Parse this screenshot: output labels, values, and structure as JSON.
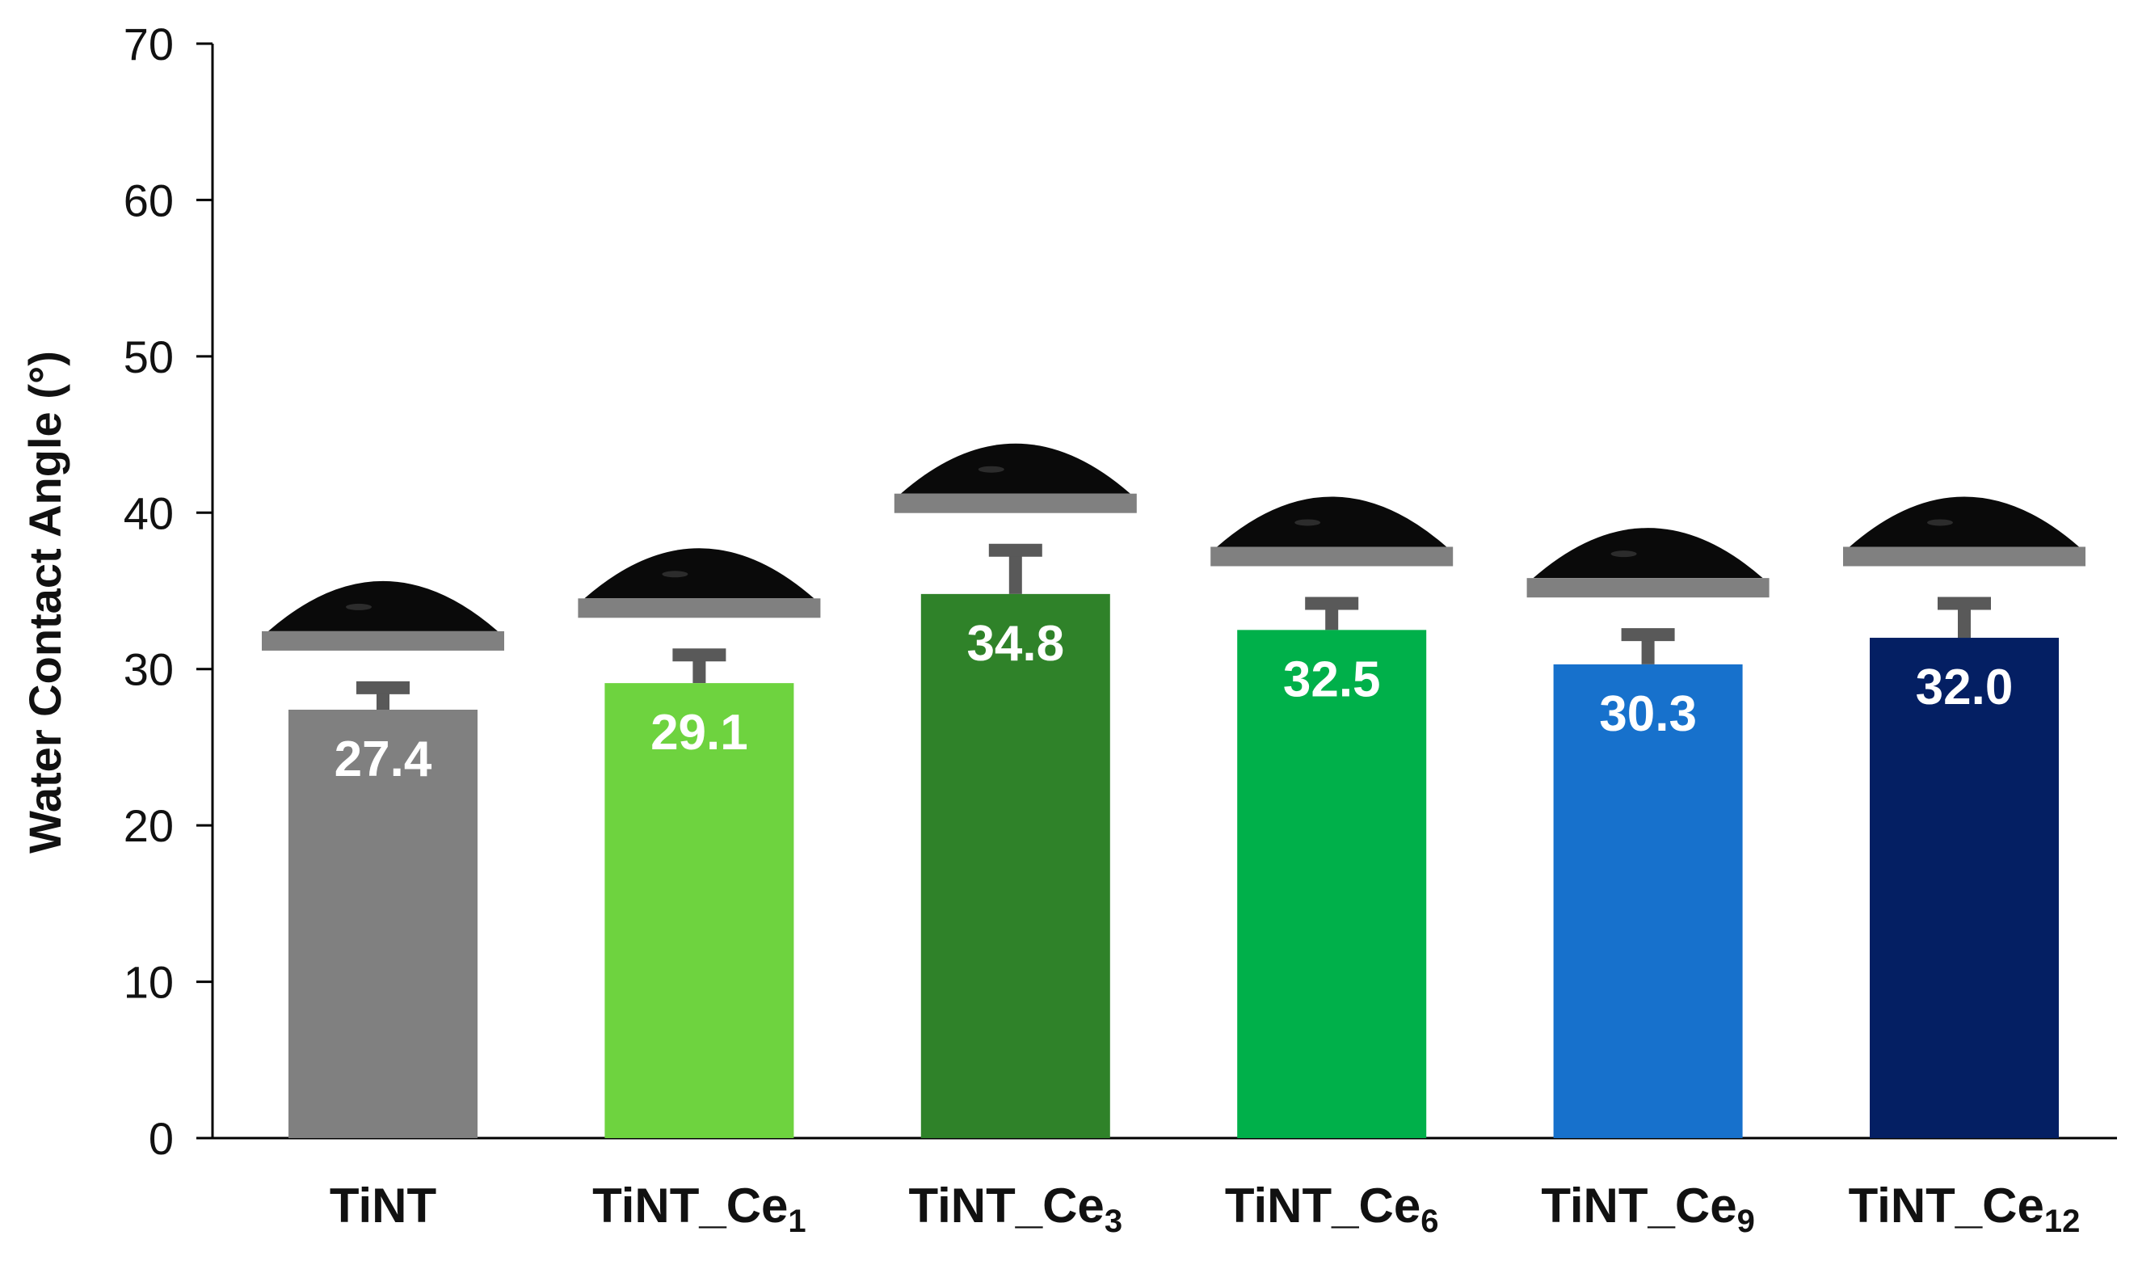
{
  "chart_data": {
    "type": "bar",
    "categories": [
      {
        "base": "TiNT",
        "sub": ""
      },
      {
        "base": "TiNT_Ce",
        "sub": "1"
      },
      {
        "base": "TiNT_Ce",
        "sub": "3"
      },
      {
        "base": "TiNT_Ce",
        "sub": "6"
      },
      {
        "base": "TiNT_Ce",
        "sub": "9"
      },
      {
        "base": "TiNT_Ce",
        "sub": "12"
      }
    ],
    "values": [
      27.4,
      29.1,
      34.8,
      32.5,
      30.3,
      32.0
    ],
    "value_labels": [
      "27.4",
      "29.1",
      "34.8",
      "32.5",
      "30.3",
      "32.0"
    ],
    "error_plus": [
      1.4,
      1.8,
      2.8,
      1.7,
      1.9,
      2.2
    ],
    "colors": [
      "#808080",
      "#6ed33f",
      "#2f8229",
      "#00b04a",
      "#1771cc",
      "#041f63"
    ],
    "ylabel": "Water Contact Angle (°)",
    "xlabel": "",
    "ylim": [
      0,
      70
    ],
    "yticks": [
      0,
      10,
      20,
      30,
      40,
      50,
      60,
      70
    ],
    "grid": false,
    "droplet_images": true,
    "droplet_color": "#0a0a0a",
    "substrate_color": "#808080",
    "errorbar_color": "#595959",
    "axis_color": "#000000"
  }
}
